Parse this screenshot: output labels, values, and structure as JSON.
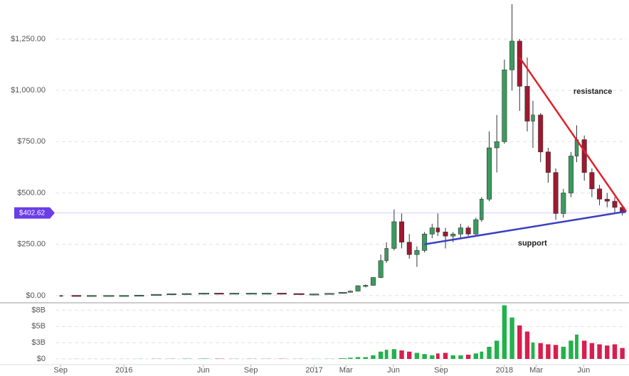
{
  "chart_data": {
    "type": "candlestick",
    "x": [
      2015.67,
      2015.75,
      2015.83,
      2015.92,
      2016.0,
      2016.08,
      2016.17,
      2016.25,
      2016.33,
      2016.42,
      2016.5,
      2016.58,
      2016.67,
      2016.75,
      2016.83,
      2016.92,
      2017.0,
      2017.08,
      2017.15,
      2017.19,
      2017.23,
      2017.27,
      2017.31,
      2017.35,
      2017.38,
      2017.42,
      2017.46,
      2017.5,
      2017.54,
      2017.58,
      2017.62,
      2017.65,
      2017.69,
      2017.73,
      2017.77,
      2017.81,
      2017.85,
      2017.88,
      2017.92,
      2017.96,
      2018.0,
      2018.04,
      2018.08,
      2018.12,
      2018.15,
      2018.19,
      2018.23,
      2018.27,
      2018.31,
      2018.35,
      2018.38,
      2018.42,
      2018.46,
      2018.5,
      2018.54,
      2018.58,
      2018.62
    ],
    "open": [
      1,
      1.2,
      0.9,
      0.9,
      0.9,
      1,
      2.2,
      6,
      9,
      10,
      12,
      11,
      12,
      12,
      12,
      10,
      8,
      8,
      11,
      16,
      22,
      48,
      50,
      88,
      170,
      230,
      360,
      260,
      200,
      220,
      300,
      330,
      310,
      290,
      300,
      330,
      300,
      370,
      470,
      720,
      750,
      1100,
      1240,
      1020,
      850,
      880,
      700,
      600,
      400,
      500,
      680,
      760,
      600,
      520,
      470,
      460,
      430
    ],
    "high": [
      1.3,
      1.3,
      1,
      1,
      1.1,
      2.5,
      7,
      10,
      12,
      14,
      13,
      13,
      13,
      13,
      12,
      10,
      9,
      12,
      17,
      25,
      50,
      55,
      90,
      200,
      260,
      420,
      400,
      300,
      240,
      310,
      350,
      400,
      330,
      310,
      350,
      340,
      380,
      480,
      800,
      880,
      1150,
      1420,
      1250,
      1160,
      950,
      890,
      720,
      620,
      520,
      700,
      830,
      780,
      620,
      540,
      500,
      480,
      440
    ],
    "low": [
      0.9,
      0.9,
      0.8,
      0.8,
      0.9,
      1,
      2,
      6,
      9,
      10,
      10,
      11,
      11,
      11,
      9,
      7,
      7,
      8,
      11,
      16,
      20,
      40,
      48,
      85,
      160,
      220,
      230,
      180,
      140,
      210,
      280,
      290,
      230,
      260,
      280,
      290,
      290,
      360,
      460,
      600,
      740,
      1000,
      900,
      800,
      720,
      650,
      550,
      370,
      380,
      480,
      650,
      560,
      480,
      440,
      430,
      400,
      390
    ],
    "close": [
      1.2,
      0.9,
      0.9,
      0.9,
      1,
      2.2,
      6,
      9,
      10,
      12,
      11,
      12,
      12,
      12,
      10,
      8,
      8,
      11,
      16,
      22,
      48,
      50,
      88,
      170,
      230,
      360,
      260,
      200,
      220,
      300,
      330,
      310,
      290,
      300,
      330,
      300,
      370,
      470,
      720,
      750,
      1100,
      1240,
      1020,
      850,
      880,
      700,
      600,
      400,
      500,
      680,
      760,
      600,
      520,
      470,
      460,
      430,
      403
    ],
    "volume": [
      0.01,
      0.01,
      0.01,
      0.01,
      0.01,
      0.02,
      0.03,
      0.03,
      0.05,
      0.06,
      0.04,
      0.03,
      0.03,
      0.03,
      0.03,
      0.02,
      0.02,
      0.03,
      0.1,
      0.2,
      0.3,
      0.3,
      0.6,
      1.2,
      1.5,
      1.6,
      1.4,
      1.2,
      1.0,
      0.8,
      0.6,
      0.9,
      1.0,
      0.6,
      0.6,
      0.7,
      0.9,
      1.2,
      2.0,
      3.0,
      8.8,
      6.8,
      5.5,
      4.5,
      2.7,
      2.6,
      2.4,
      2.3,
      2.0,
      3.0,
      4.0,
      3.0,
      2.6,
      2.4,
      2.2,
      2.4,
      1.8
    ],
    "up_color": "#3c9a5f",
    "down_color": "#a01830",
    "volume_up_color": "#22b24c",
    "volume_down_color": "#d81e4f",
    "xlim": [
      2015.64,
      2018.64
    ],
    "xticks": [
      {
        "value": 2015.667,
        "label": "Sep"
      },
      {
        "value": 2016,
        "label": "2016"
      },
      {
        "value": 2016.417,
        "label": "Jun"
      },
      {
        "value": 2016.667,
        "label": "Sep"
      },
      {
        "value": 2017,
        "label": "2017"
      },
      {
        "value": 2017.167,
        "label": "Mar"
      },
      {
        "value": 2017.417,
        "label": "Jun"
      },
      {
        "value": 2017.667,
        "label": "Sep"
      },
      {
        "value": 2018,
        "label": "2018"
      },
      {
        "value": 2018.167,
        "label": "Mar"
      },
      {
        "value": 2018.417,
        "label": "Jun"
      }
    ],
    "ylim": [
      -35,
      1430
    ],
    "yticks": [
      {
        "value": 0,
        "label": "$0.00"
      },
      {
        "value": 250,
        "label": "$250.00"
      },
      {
        "value": 500,
        "label": "$500.00"
      },
      {
        "value": 750,
        "label": "$750.00"
      },
      {
        "value": 1000,
        "label": "$1,000.00"
      },
      {
        "value": 1250,
        "label": "$1,250.00"
      }
    ],
    "volume_ylim": [
      0,
      9.1
    ],
    "volume_yticks": [
      {
        "value": 0,
        "label": "$0"
      },
      {
        "value": 2.67,
        "label": "$3B"
      },
      {
        "value": 5.33,
        "label": "$5B"
      },
      {
        "value": 8,
        "label": "$8B"
      }
    ],
    "last_price": 402.62,
    "last_price_label": "$402.62",
    "last_price_color": "#6a3de8",
    "grid": true,
    "annotations": [
      {
        "text": "resistance",
        "x1": 2018.08,
        "y1": 1160,
        "x2": 2018.64,
        "y2": 410,
        "color": "#e0202a"
      },
      {
        "text": "support",
        "x1": 2017.58,
        "y1": 250,
        "x2": 2018.64,
        "y2": 410,
        "color": "#3a3fc0"
      }
    ]
  }
}
